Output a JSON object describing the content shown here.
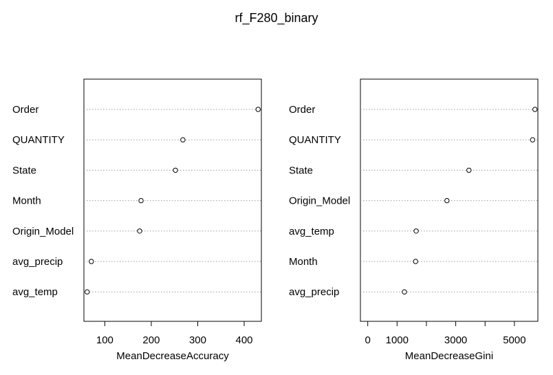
{
  "title": "rf_F280_binary",
  "chart_data": [
    {
      "type": "scatter",
      "subtype": "dotchart",
      "xlabel": "MeanDecreaseAccuracy",
      "xlim": [
        55,
        437
      ],
      "xticks": [
        100,
        200,
        300,
        400
      ],
      "xtick_labels": [
        "100",
        "200",
        "300",
        "400"
      ],
      "grid": "dotted horizontal",
      "rows": [
        {
          "label": "Order",
          "value": 430
        },
        {
          "label": "QUANTITY",
          "value": 268
        },
        {
          "label": "State",
          "value": 252
        },
        {
          "label": "Month",
          "value": 178
        },
        {
          "label": "Origin_Model",
          "value": 175
        },
        {
          "label": "avg_precip",
          "value": 71
        },
        {
          "label": "avg_temp",
          "value": 62
        }
      ]
    },
    {
      "type": "scatter",
      "subtype": "dotchart",
      "xlabel": "MeanDecreaseGini",
      "xlim": [
        -250,
        5800
      ],
      "xticks": [
        0,
        1000,
        2000,
        3000,
        4000,
        5000
      ],
      "xtick_labels": [
        "0",
        "1000",
        "",
        "3000",
        "",
        "5000"
      ],
      "grid": "dotted horizontal",
      "rows": [
        {
          "label": "Order",
          "value": 5700
        },
        {
          "label": "QUANTITY",
          "value": 5620
        },
        {
          "label": "State",
          "value": 3450
        },
        {
          "label": "Origin_Model",
          "value": 2700
        },
        {
          "label": "avg_temp",
          "value": 1650
        },
        {
          "label": "Month",
          "value": 1630
        },
        {
          "label": "avg_precip",
          "value": 1250
        }
      ]
    }
  ]
}
